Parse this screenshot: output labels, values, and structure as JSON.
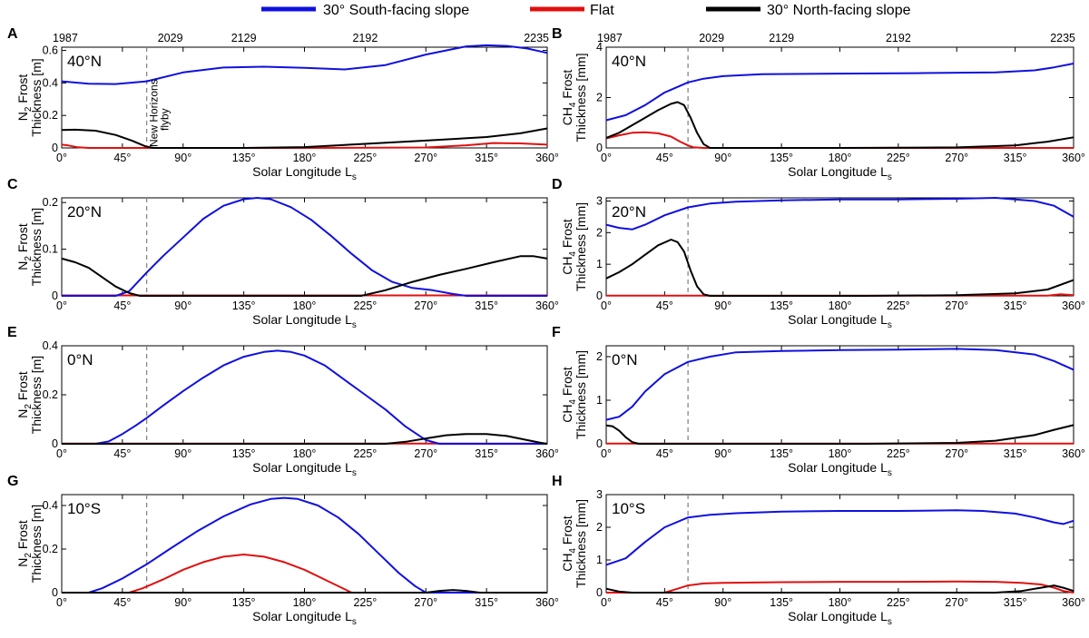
{
  "legend": [
    {
      "name": "30° South-facing slope",
      "color": "#1010e0"
    },
    {
      "name": "Flat",
      "color": "#e01010"
    },
    {
      "name": "30° North-facing slope",
      "color": "#000000"
    }
  ],
  "colors": {
    "south": "#1010e0",
    "flat": "#e01010",
    "north": "#000000",
    "flyby_line": "#888888"
  },
  "annotation": {
    "line1": "New Horizons",
    "line2": "flyby",
    "ls": 63
  },
  "xaxis": {
    "ticks": [
      0,
      45,
      90,
      135,
      180,
      225,
      270,
      315,
      360
    ],
    "tick_labels": [
      "0°",
      "45°",
      "90°",
      "135°",
      "180°",
      "225°",
      "270°",
      "315°",
      "360°"
    ],
    "title": "Solar Longitude L",
    "title_sub": "s",
    "range": [
      0,
      360
    ]
  },
  "top_axis": {
    "ticks": [
      0,
      63,
      135,
      225,
      360
    ],
    "labels": [
      "1987",
      "2029",
      "2129",
      "2192",
      "2235"
    ]
  },
  "chart_data": [
    {
      "id": "A",
      "letter": "A",
      "lat_label": "40°N",
      "type": "line",
      "ylabel_line1": "N",
      "ylabel_sub": "2",
      "ylabel_rest": " Frost",
      "ylabel_line2": "Thickness [m]",
      "ylim": [
        0,
        0.62
      ],
      "yticks": [
        0,
        0.2,
        0.4,
        0.6
      ],
      "ytick_labels": [
        "0",
        "0.2",
        "0.4",
        "0.6"
      ],
      "series": [
        {
          "key": "south",
          "x": [
            0,
            20,
            40,
            63,
            90,
            120,
            150,
            180,
            210,
            240,
            270,
            300,
            315,
            330,
            345,
            360
          ],
          "y": [
            0.41,
            0.395,
            0.393,
            0.41,
            0.465,
            0.495,
            0.5,
            0.493,
            0.483,
            0.51,
            0.575,
            0.625,
            0.632,
            0.628,
            0.612,
            0.585
          ]
        },
        {
          "key": "flat",
          "x": [
            0,
            5,
            12,
            20,
            60,
            180,
            270,
            300,
            320,
            340,
            360
          ],
          "y": [
            0.02,
            0.015,
            0.004,
            0.0,
            0.0,
            0.0,
            0.003,
            0.016,
            0.03,
            0.028,
            0.02
          ]
        },
        {
          "key": "north",
          "x": [
            0,
            10,
            25,
            40,
            52,
            62,
            68,
            90,
            135,
            180,
            225,
            270,
            315,
            340,
            360
          ],
          "y": [
            0.11,
            0.112,
            0.106,
            0.08,
            0.045,
            0.01,
            0.0,
            0.0,
            0.0,
            0.005,
            0.025,
            0.045,
            0.067,
            0.09,
            0.12
          ]
        }
      ]
    },
    {
      "id": "B",
      "letter": "B",
      "lat_label": "40°N",
      "type": "line",
      "ylabel_line1": "CH",
      "ylabel_sub": "4",
      "ylabel_rest": " Frost",
      "ylabel_line2": "Thickness [mm]",
      "ylim": [
        0,
        4
      ],
      "yticks": [
        0,
        2,
        4
      ],
      "ytick_labels": [
        "0",
        "2",
        "4"
      ],
      "series": [
        {
          "key": "south",
          "x": [
            0,
            15,
            30,
            45,
            63,
            75,
            90,
            120,
            180,
            240,
            300,
            330,
            345,
            360
          ],
          "y": [
            1.1,
            1.3,
            1.7,
            2.2,
            2.6,
            2.75,
            2.85,
            2.93,
            2.95,
            2.97,
            3.0,
            3.08,
            3.2,
            3.35
          ]
        },
        {
          "key": "flat",
          "x": [
            0,
            10,
            20,
            30,
            40,
            50,
            57,
            63,
            67,
            75,
            90,
            360
          ],
          "y": [
            0.38,
            0.5,
            0.6,
            0.62,
            0.58,
            0.45,
            0.25,
            0.1,
            0.03,
            0.0,
            0.0,
            0.0
          ]
        },
        {
          "key": "north",
          "x": [
            0,
            10,
            20,
            30,
            40,
            50,
            55,
            60,
            65,
            70,
            75,
            80,
            100,
            180,
            270,
            315,
            340,
            360
          ],
          "y": [
            0.4,
            0.6,
            0.9,
            1.2,
            1.5,
            1.75,
            1.82,
            1.7,
            1.2,
            0.6,
            0.15,
            0.0,
            0.0,
            0.0,
            0.02,
            0.1,
            0.25,
            0.42
          ]
        }
      ]
    },
    {
      "id": "C",
      "letter": "C",
      "lat_label": "20°N",
      "type": "line",
      "ylabel_line1": "N",
      "ylabel_sub": "2",
      "ylabel_rest": " Frost",
      "ylabel_line2": "Thickness [m]",
      "ylim": [
        0,
        0.21
      ],
      "yticks": [
        0,
        0.1,
        0.2
      ],
      "ytick_labels": [
        "0",
        "0.1",
        "0.2"
      ],
      "series": [
        {
          "key": "south",
          "x": [
            0,
            40,
            50,
            63,
            75,
            90,
            105,
            120,
            135,
            145,
            155,
            170,
            185,
            200,
            215,
            230,
            245,
            260,
            275,
            290,
            300,
            310,
            360
          ],
          "y": [
            0,
            0,
            0.01,
            0.05,
            0.085,
            0.125,
            0.165,
            0.193,
            0.207,
            0.21,
            0.207,
            0.19,
            0.163,
            0.128,
            0.09,
            0.055,
            0.03,
            0.017,
            0.012,
            0.004,
            0.0,
            0.0,
            0.0
          ]
        },
        {
          "key": "flat",
          "x": [
            0,
            360
          ],
          "y": [
            0.001,
            0.001
          ]
        },
        {
          "key": "north",
          "x": [
            0,
            10,
            20,
            30,
            40,
            50,
            58,
            65,
            90,
            180,
            222,
            240,
            260,
            280,
            300,
            320,
            340,
            350,
            360
          ],
          "y": [
            0.08,
            0.072,
            0.06,
            0.04,
            0.02,
            0.006,
            0.0,
            0.0,
            0.0,
            0.0,
            0.0,
            0.012,
            0.03,
            0.045,
            0.058,
            0.072,
            0.085,
            0.085,
            0.08
          ]
        }
      ]
    },
    {
      "id": "D",
      "letter": "D",
      "lat_label": "20°N",
      "type": "line",
      "ylabel_line1": "CH",
      "ylabel_sub": "4",
      "ylabel_rest": " Frost",
      "ylabel_line2": "Thickness [mm]",
      "ylim": [
        0,
        3.1
      ],
      "yticks": [
        0,
        1,
        2,
        3
      ],
      "ytick_labels": [
        "0",
        "1",
        "2",
        "3"
      ],
      "series": [
        {
          "key": "south",
          "x": [
            0,
            10,
            20,
            30,
            45,
            63,
            80,
            100,
            135,
            180,
            225,
            270,
            300,
            330,
            345,
            360
          ],
          "y": [
            2.25,
            2.15,
            2.1,
            2.25,
            2.55,
            2.8,
            2.92,
            2.98,
            3.02,
            3.05,
            3.05,
            3.07,
            3.1,
            3.0,
            2.85,
            2.5
          ]
        },
        {
          "key": "flat",
          "x": [
            0,
            340,
            350,
            360
          ],
          "y": [
            0.005,
            0.005,
            0.05,
            0.02
          ]
        },
        {
          "key": "north",
          "x": [
            0,
            10,
            20,
            30,
            40,
            50,
            55,
            60,
            65,
            70,
            75,
            80,
            100,
            200,
            270,
            315,
            340,
            360
          ],
          "y": [
            0.55,
            0.75,
            1.0,
            1.3,
            1.6,
            1.78,
            1.7,
            1.4,
            0.8,
            0.3,
            0.05,
            0.0,
            0.0,
            0.0,
            0.02,
            0.08,
            0.2,
            0.5
          ]
        }
      ]
    },
    {
      "id": "E",
      "letter": "E",
      "lat_label": "0°N",
      "type": "line",
      "ylabel_line1": "N",
      "ylabel_sub": "2",
      "ylabel_rest": " Frost",
      "ylabel_line2": "Thickness [m]",
      "ylim": [
        0,
        0.4
      ],
      "yticks": [
        0,
        0.2,
        0.4
      ],
      "ytick_labels": [
        "0",
        "0.2",
        "0.4"
      ],
      "series": [
        {
          "key": "south",
          "x": [
            0,
            25,
            35,
            45,
            55,
            63,
            75,
            90,
            105,
            120,
            135,
            150,
            160,
            170,
            180,
            195,
            210,
            225,
            240,
            255,
            270,
            280,
            360
          ],
          "y": [
            0,
            0,
            0.01,
            0.04,
            0.075,
            0.105,
            0.155,
            0.215,
            0.27,
            0.32,
            0.355,
            0.375,
            0.38,
            0.375,
            0.36,
            0.32,
            0.26,
            0.2,
            0.14,
            0.07,
            0.015,
            0.0,
            0.0
          ]
        },
        {
          "key": "flat",
          "x": [
            0,
            360
          ],
          "y": [
            0.001,
            0.001
          ]
        },
        {
          "key": "north",
          "x": [
            0,
            240,
            255,
            270,
            285,
            300,
            315,
            330,
            345,
            355,
            360
          ],
          "y": [
            0,
            0,
            0.008,
            0.022,
            0.035,
            0.04,
            0.04,
            0.032,
            0.015,
            0.004,
            0.0
          ]
        }
      ]
    },
    {
      "id": "F",
      "letter": "F",
      "lat_label": "0°N",
      "type": "line",
      "ylabel_line1": "CH",
      "ylabel_sub": "4",
      "ylabel_rest": " Frost",
      "ylabel_line2": "Thickness [mm]",
      "ylim": [
        0,
        2.25
      ],
      "yticks": [
        0,
        1,
        2
      ],
      "ytick_labels": [
        "0",
        "1",
        "2"
      ],
      "series": [
        {
          "key": "south",
          "x": [
            0,
            10,
            20,
            30,
            45,
            63,
            80,
            100,
            135,
            180,
            225,
            270,
            300,
            330,
            345,
            360
          ],
          "y": [
            0.55,
            0.62,
            0.85,
            1.2,
            1.6,
            1.88,
            2.0,
            2.1,
            2.13,
            2.15,
            2.16,
            2.18,
            2.15,
            2.05,
            1.9,
            1.7
          ]
        },
        {
          "key": "flat",
          "x": [
            0,
            360
          ],
          "y": [
            0.005,
            0.005
          ]
        },
        {
          "key": "north",
          "x": [
            0,
            5,
            10,
            15,
            20,
            25,
            30,
            200,
            270,
            300,
            330,
            345,
            360
          ],
          "y": [
            0.42,
            0.4,
            0.3,
            0.15,
            0.04,
            0.0,
            0.0,
            0.0,
            0.02,
            0.07,
            0.2,
            0.32,
            0.43
          ]
        }
      ]
    },
    {
      "id": "G",
      "letter": "G",
      "lat_label": "10°S",
      "type": "line",
      "ylabel_line1": "N",
      "ylabel_sub": "2",
      "ylabel_rest": " Frost",
      "ylabel_line2": "Thickness [m]",
      "ylim": [
        0,
        0.45
      ],
      "yticks": [
        0,
        0.2,
        0.4
      ],
      "ytick_labels": [
        "0",
        "0.2",
        "0.4"
      ],
      "series": [
        {
          "key": "south",
          "x": [
            0,
            20,
            30,
            45,
            63,
            80,
            100,
            120,
            140,
            155,
            165,
            175,
            190,
            205,
            220,
            235,
            250,
            262,
            270,
            360
          ],
          "y": [
            0,
            0,
            0.02,
            0.065,
            0.13,
            0.2,
            0.28,
            0.35,
            0.405,
            0.43,
            0.435,
            0.43,
            0.4,
            0.345,
            0.27,
            0.18,
            0.09,
            0.03,
            0.0,
            0.0
          ]
        },
        {
          "key": "flat",
          "x": [
            0,
            50,
            60,
            75,
            90,
            105,
            120,
            135,
            150,
            165,
            180,
            195,
            210,
            215,
            360
          ],
          "y": [
            0,
            0,
            0.02,
            0.06,
            0.105,
            0.14,
            0.165,
            0.175,
            0.165,
            0.14,
            0.105,
            0.06,
            0.015,
            0.0,
            0.0
          ]
        },
        {
          "key": "north",
          "x": [
            0,
            270,
            280,
            290,
            300,
            310,
            360
          ],
          "y": [
            0,
            0,
            0.008,
            0.012,
            0.008,
            0.0,
            0.0
          ]
        }
      ]
    },
    {
      "id": "H",
      "letter": "H",
      "lat_label": "10°S",
      "type": "line",
      "ylabel_line1": "CH",
      "ylabel_sub": "4",
      "ylabel_rest": " Frost",
      "ylabel_line2": "Thickness [mm]",
      "ylim": [
        0,
        3
      ],
      "yticks": [
        0,
        1,
        2,
        3
      ],
      "ytick_labels": [
        "0",
        "1",
        "2",
        "3"
      ],
      "series": [
        {
          "key": "south",
          "x": [
            0,
            15,
            30,
            45,
            63,
            80,
            100,
            135,
            180,
            225,
            270,
            290,
            315,
            330,
            345,
            352,
            360
          ],
          "y": [
            0.85,
            1.05,
            1.55,
            2.0,
            2.3,
            2.38,
            2.43,
            2.48,
            2.5,
            2.5,
            2.52,
            2.5,
            2.42,
            2.3,
            2.15,
            2.1,
            2.2
          ]
        },
        {
          "key": "flat",
          "x": [
            0,
            45,
            55,
            63,
            75,
            90,
            135,
            180,
            225,
            270,
            300,
            320,
            335,
            345,
            352,
            360
          ],
          "y": [
            0,
            0,
            0.12,
            0.22,
            0.28,
            0.3,
            0.32,
            0.33,
            0.33,
            0.34,
            0.33,
            0.3,
            0.25,
            0.15,
            0.05,
            0.0
          ]
        },
        {
          "key": "north",
          "x": [
            0,
            10,
            20,
            300,
            320,
            335,
            345,
            352,
            360
          ],
          "y": [
            0.12,
            0.03,
            0.0,
            0.0,
            0.05,
            0.15,
            0.22,
            0.15,
            0.05
          ]
        }
      ]
    }
  ]
}
